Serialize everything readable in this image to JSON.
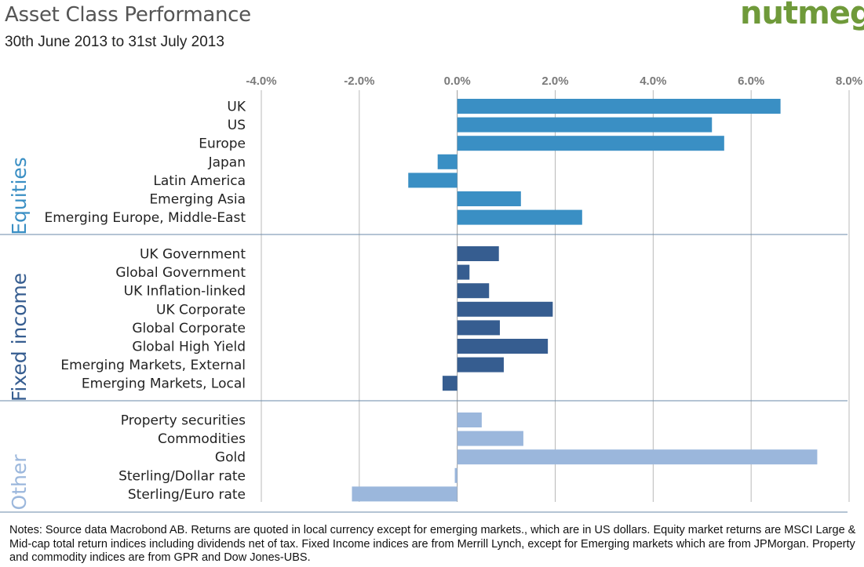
{
  "title": "Asset Class Performance",
  "subtitle": "30th June 2013 to 31st July 2013",
  "logo": "nutmeg",
  "notes": "Notes: Source data Macrobond AB. Returns are quoted in local currency except for emerging markets., which are in US dollars. Equity market returns are MSCI Large &  Mid-cap total return indices including dividends net of tax. Fixed Income indices are from Merrill Lynch, except for Emerging markets which are from JPMorgan. Property and commodity indices are from GPR and Dow Jones-UBS.",
  "chart_data": {
    "type": "bar",
    "orientation": "horizontal",
    "xlim": [
      -4.0,
      8.0
    ],
    "x_ticks": [
      -4.0,
      -2.0,
      0.0,
      2.0,
      4.0,
      6.0,
      8.0
    ],
    "x_tick_labels": [
      "-4.0%",
      "-2.0%",
      "0.0%",
      "2.0%",
      "4.0%",
      "6.0%",
      "8.0%"
    ],
    "x_axis_position": "top",
    "grid": true,
    "groups": [
      {
        "name": "Equities",
        "color": "#3a8fc4",
        "categories": [
          "UK",
          "US",
          "Europe",
          "Japan",
          "Latin America",
          "Emerging Asia",
          "Emerging Europe, Middle-East"
        ],
        "values": [
          6.6,
          5.2,
          5.45,
          -0.4,
          -1.0,
          1.3,
          2.55
        ]
      },
      {
        "name": "Fixed income",
        "color": "#365d90",
        "categories": [
          "UK Government",
          "Global Government",
          "UK Inflation-linked",
          "UK Corporate",
          "Global Corporate",
          "Global High Yield",
          "Emerging Markets, External",
          "Emerging Markets, Local"
        ],
        "values": [
          0.85,
          0.25,
          0.65,
          1.95,
          0.87,
          1.85,
          0.95,
          -0.3
        ]
      },
      {
        "name": "Other",
        "color": "#9bb7dc",
        "categories": [
          "Property securities",
          "Commodities",
          "Gold",
          "Sterling/Dollar rate",
          "Sterling/Euro rate"
        ],
        "values": [
          0.5,
          1.35,
          7.35,
          -0.05,
          -2.15
        ]
      }
    ]
  }
}
